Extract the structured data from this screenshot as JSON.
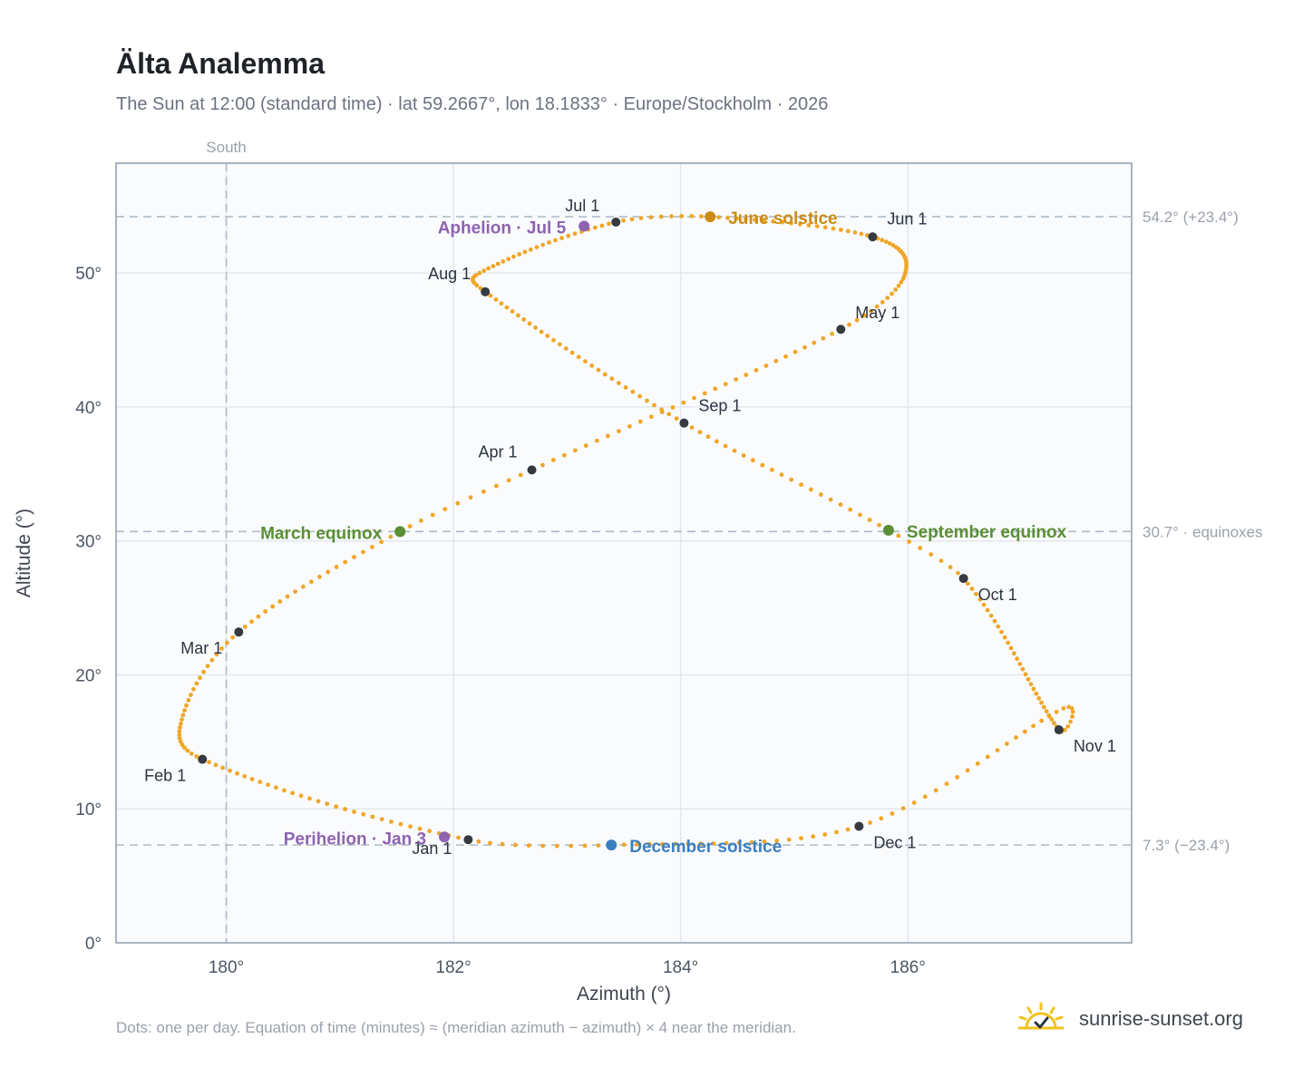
{
  "header": {
    "title": "Älta Analemma",
    "subtitle": "The Sun at 12:00 (standard time) · lat 59.2667°, lon 18.1833° · Europe/Stockholm · 2026"
  },
  "footer": {
    "note": "Dots: one per day. Equation of time (minutes) ≈ (meridian azimuth − azimuth) × 4 near the meridian."
  },
  "brand": {
    "name": "sunrise-sunset.org",
    "icon": "sun-check-icon"
  },
  "colors": {
    "path": "#f0a628",
    "month": "#343a40",
    "solstice_june": "#cc8c14",
    "solstice_december": "#3a7fc1",
    "equinox": "#5b8f35",
    "apsis": "#8e63b0",
    "grid": "#e4e8ee",
    "ref_line": "#aebbc6",
    "frame": "#97a3b3",
    "plot_bg": "#f9fbfd"
  },
  "chart_data": {
    "type": "scatter",
    "title": "Älta Analemma",
    "xlabel": "Azimuth (°)",
    "ylabel": "Altitude (°)",
    "xlim": [
      179.03,
      187.97
    ],
    "ylim": [
      0,
      58.2
    ],
    "x_ticks": [
      "180°",
      "182°",
      "184°",
      "186°"
    ],
    "y_ticks": [
      "0°",
      "10°",
      "20°",
      "30°",
      "40°",
      "50°"
    ],
    "x_tick_values": [
      180,
      182,
      184,
      186
    ],
    "y_tick_values": [
      0,
      10,
      20,
      30,
      40,
      50
    ],
    "grid": true,
    "meridian": {
      "x": 180,
      "label": "South"
    },
    "reference_lines": [
      {
        "y": 54.2,
        "label": "54.2° (+23.4°)"
      },
      {
        "y": 30.7,
        "label": "30.7° · equinoxes"
      },
      {
        "y": 7.3,
        "label": "7.3° (−23.4°)"
      }
    ],
    "path_anchors": [
      {
        "day": 1,
        "az": 182.13,
        "alt": 7.7
      },
      {
        "day": 32,
        "az": 179.79,
        "alt": 13.7
      },
      {
        "day": 60,
        "az": 180.11,
        "alt": 23.2
      },
      {
        "day": 80,
        "az": 181.53,
        "alt": 30.7
      },
      {
        "day": 91,
        "az": 182.69,
        "alt": 35.3
      },
      {
        "day": 121,
        "az": 185.41,
        "alt": 45.8
      },
      {
        "day": 152,
        "az": 185.69,
        "alt": 52.7
      },
      {
        "day": 172,
        "az": 184.26,
        "alt": 54.2
      },
      {
        "day": 182,
        "az": 183.43,
        "alt": 53.8
      },
      {
        "day": 213,
        "az": 182.28,
        "alt": 48.6
      },
      {
        "day": 244,
        "az": 184.03,
        "alt": 38.8
      },
      {
        "day": 266,
        "az": 185.83,
        "alt": 30.8
      },
      {
        "day": 274,
        "az": 186.49,
        "alt": 27.2
      },
      {
        "day": 305,
        "az": 187.33,
        "alt": 15.9
      },
      {
        "day": 335,
        "az": 185.57,
        "alt": 8.7
      },
      {
        "day": 355,
        "az": 183.39,
        "alt": 7.3
      },
      {
        "day": 366,
        "az": 182.13,
        "alt": 7.7
      }
    ],
    "path_extremes": [
      {
        "day": 45,
        "az": 179.62,
        "alt": 17.0
      },
      {
        "day": 134,
        "az": 185.97,
        "alt": 49.8
      },
      {
        "day": 205,
        "az": 182.23,
        "alt": 50.0
      },
      {
        "day": 314,
        "az": 187.37,
        "alt": 17.5
      }
    ],
    "month_markers": [
      {
        "label": "Jan 1",
        "az": 182.13,
        "alt": 7.7,
        "anchor": "end",
        "dx": -18,
        "dy": 16
      },
      {
        "label": "Feb 1",
        "az": 179.79,
        "alt": 13.7,
        "anchor": "end",
        "dx": -18,
        "dy": 24
      },
      {
        "label": "Mar 1",
        "az": 180.11,
        "alt": 23.2,
        "anchor": "end",
        "dx": -18,
        "dy": 24
      },
      {
        "label": "Apr 1",
        "az": 182.69,
        "alt": 35.3,
        "anchor": "end",
        "dx": -16,
        "dy": -14
      },
      {
        "label": "May 1",
        "az": 185.41,
        "alt": 45.8,
        "anchor": "start",
        "dx": 16,
        "dy": -12
      },
      {
        "label": "Jun 1",
        "az": 185.69,
        "alt": 52.7,
        "anchor": "start",
        "dx": 16,
        "dy": -14
      },
      {
        "label": "Jul 1",
        "az": 183.43,
        "alt": 53.8,
        "anchor": "end",
        "dx": -18,
        "dy": -12
      },
      {
        "label": "Aug 1",
        "az": 182.28,
        "alt": 48.6,
        "anchor": "end",
        "dx": -16,
        "dy": -14
      },
      {
        "label": "Sep 1",
        "az": 184.03,
        "alt": 38.8,
        "anchor": "start",
        "dx": 16,
        "dy": -13
      },
      {
        "label": "Oct 1",
        "az": 186.49,
        "alt": 27.2,
        "anchor": "start",
        "dx": 16,
        "dy": 24
      },
      {
        "label": "Nov 1",
        "az": 187.33,
        "alt": 15.9,
        "anchor": "start",
        "dx": 16,
        "dy": 24
      },
      {
        "label": "Dec 1",
        "az": 185.57,
        "alt": 8.7,
        "anchor": "start",
        "dx": 16,
        "dy": 24
      }
    ],
    "events": [
      {
        "label": "June solstice",
        "az": 184.26,
        "alt": 54.2,
        "color": "#cc8c14",
        "anchor": "start",
        "dx": 20,
        "dy": 8
      },
      {
        "label": "December solstice",
        "az": 183.39,
        "alt": 7.3,
        "color": "#3a7fc1",
        "anchor": "start",
        "dx": 20,
        "dy": 8
      },
      {
        "label": "March equinox",
        "az": 181.53,
        "alt": 30.7,
        "color": "#5b8f35",
        "anchor": "end",
        "dx": -20,
        "dy": 8
      },
      {
        "label": "September equinox",
        "az": 185.83,
        "alt": 30.8,
        "color": "#5b8f35",
        "anchor": "start",
        "dx": 20,
        "dy": 8
      },
      {
        "label": "Aphelion · Jul 5",
        "az": 183.15,
        "alt": 53.5,
        "color": "#8e63b0",
        "anchor": "end",
        "dx": -20,
        "dy": 8
      },
      {
        "label": "Perihelion · Jan 3",
        "az": 181.92,
        "alt": 7.9,
        "color": "#8e63b0",
        "anchor": "end",
        "dx": -20,
        "dy": 8
      }
    ]
  }
}
